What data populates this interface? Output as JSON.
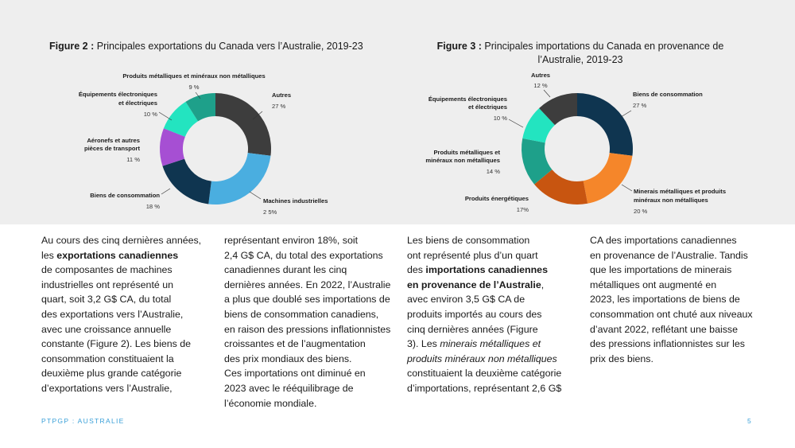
{
  "figures": [
    {
      "number_label": "Figure 2 :",
      "title_lines": [
        "Principales exportations du Canada vers l’Australie, 2019-23"
      ],
      "slices": [
        {
          "label_lines": [
            "Autres"
          ],
          "pct": "27 %",
          "value": 27,
          "color": "#3d3d3d"
        },
        {
          "label_lines": [
            "Machines industrielles"
          ],
          "pct": "2 5%",
          "value": 25,
          "color": "#4aaee0"
        },
        {
          "label_lines": [
            "Biens de consommation"
          ],
          "pct": "18 %",
          "value": 18,
          "color": "#0f3550"
        },
        {
          "label_lines": [
            "Aéronefs et autres",
            "pièces de transport"
          ],
          "pct": "11 %",
          "value": 11,
          "color": "#a64fd3"
        },
        {
          "label_lines": [
            "Équipements électroniques",
            "et électriques"
          ],
          "pct": "10 %",
          "value": 10,
          "color": "#23e4c0"
        },
        {
          "label_lines": [
            "Produits métalliques et minéraux non métalliques"
          ],
          "pct": "9 %",
          "value": 9,
          "color": "#1ea08a"
        }
      ]
    },
    {
      "number_label": "Figure 3 :",
      "title_lines": [
        "Principales importations du Canada en provenance de",
        "l’Australie, 2019-23"
      ],
      "slices": [
        {
          "label_lines": [
            "Biens de consommation"
          ],
          "pct": "27 %",
          "value": 27,
          "color": "#0f3550"
        },
        {
          "label_lines": [
            "Minerais métalliques et produits",
            "minéraux non métalliques"
          ],
          "pct": "20 %",
          "value": 20,
          "color": "#f5862a"
        },
        {
          "label_lines": [
            "Produits énergétiques"
          ],
          "pct": "17%",
          "value": 17,
          "color": "#c85510"
        },
        {
          "label_lines": [
            "Produits métalliques et",
            "minéraux non métalliques"
          ],
          "pct": "14 %",
          "value": 14,
          "color": "#1ea08a"
        },
        {
          "label_lines": [
            "Équipements électroniques",
            "et électriques"
          ],
          "pct": "10 %",
          "value": 10,
          "color": "#23e4c0"
        },
        {
          "label_lines": [
            "Autres"
          ],
          "pct": "12 %",
          "value": 12,
          "color": "#3d3d3d"
        }
      ]
    }
  ],
  "body_columns": [
    [
      {
        "parts": [
          {
            "t": "Au cours des cinq dernières années,"
          }
        ]
      },
      {
        "parts": [
          {
            "t": "les "
          },
          {
            "t": "exportations canadiennes",
            "b": true
          }
        ]
      },
      {
        "parts": [
          {
            "t": "de composantes de machines"
          }
        ]
      },
      {
        "parts": [
          {
            "t": "industrielles ont représenté un"
          }
        ]
      },
      {
        "parts": [
          {
            "t": "quart, soit 3,2 G$ CA, du total"
          }
        ]
      },
      {
        "parts": [
          {
            "t": "des exportations vers l’Australie,"
          }
        ]
      },
      {
        "parts": [
          {
            "t": "avec une croissance annuelle"
          }
        ]
      },
      {
        "parts": [
          {
            "t": "constante (Figure 2). Les biens de"
          }
        ]
      },
      {
        "parts": [
          {
            "t": "consommation constituaient la"
          }
        ]
      },
      {
        "parts": [
          {
            "t": "deuxième plus grande catégorie"
          }
        ]
      },
      {
        "parts": [
          {
            "t": "d’exportations vers l’Australie,"
          }
        ]
      }
    ],
    [
      {
        "parts": [
          {
            "t": "représentant environ 18%, soit"
          }
        ]
      },
      {
        "parts": [
          {
            "t": "2,4 G$ CA, du total des exportations"
          }
        ]
      },
      {
        "parts": [
          {
            "t": "canadiennes durant les cinq"
          }
        ]
      },
      {
        "parts": [
          {
            "t": "dernières années. En 2022, l’Australie"
          }
        ]
      },
      {
        "parts": [
          {
            "t": "a plus que doublé ses importations de"
          }
        ]
      },
      {
        "parts": [
          {
            "t": "biens de consommation canadiens,"
          }
        ]
      },
      {
        "parts": [
          {
            "t": "en raison des pressions inflationnistes"
          }
        ]
      },
      {
        "parts": [
          {
            "t": "croissantes et de l’augmentation"
          }
        ]
      },
      {
        "parts": [
          {
            "t": "des prix mondiaux des biens."
          }
        ]
      },
      {
        "parts": [
          {
            "t": "Ces importations ont diminué en"
          }
        ]
      },
      {
        "parts": [
          {
            "t": "2023 avec le rééquilibrage de"
          }
        ]
      },
      {
        "parts": [
          {
            "t": "l’économie mondiale."
          }
        ]
      }
    ],
    [
      {
        "parts": [
          {
            "t": "Les biens de consommation"
          }
        ]
      },
      {
        "parts": [
          {
            "t": "ont représenté plus d’un quart"
          }
        ]
      },
      {
        "parts": [
          {
            "t": "des "
          },
          {
            "t": "importations canadiennes",
            "b": true
          }
        ]
      },
      {
        "parts": [
          {
            "t": "en provenance de l’Australie",
            "b": true
          },
          {
            "t": ","
          }
        ]
      },
      {
        "parts": [
          {
            "t": "avec environ 3,5 G$ CA de"
          }
        ]
      },
      {
        "parts": [
          {
            "t": "produits importés au cours des"
          }
        ]
      },
      {
        "parts": [
          {
            "t": "cinq dernières années (Figure"
          }
        ]
      },
      {
        "parts": [
          {
            "t": "3). Les "
          },
          {
            "t": "minerais métalliques et",
            "i": true
          }
        ]
      },
      {
        "parts": [
          {
            "t": "produits minéraux non métalliques",
            "i": true
          }
        ]
      },
      {
        "parts": [
          {
            "t": "constituaient la deuxième catégorie"
          }
        ]
      },
      {
        "parts": [
          {
            "t": "d’importations, représentant 2,6 G$"
          }
        ]
      }
    ],
    [
      {
        "parts": [
          {
            "t": "CA des importations canadiennes"
          }
        ]
      },
      {
        "parts": [
          {
            "t": "en provenance de l’Australie. Tandis"
          }
        ]
      },
      {
        "parts": [
          {
            "t": "que les importations de minerais"
          }
        ]
      },
      {
        "parts": [
          {
            "t": "métalliques ont augmenté en"
          }
        ]
      },
      {
        "parts": [
          {
            "t": "2023, les importations de biens de"
          }
        ]
      },
      {
        "parts": [
          {
            "t": "consommation ont chuté aux niveaux"
          }
        ]
      },
      {
        "parts": [
          {
            "t": "d’avant 2022, reflétant une baisse"
          }
        ]
      },
      {
        "parts": [
          {
            "t": "des pressions inflationnistes sur les"
          }
        ]
      },
      {
        "parts": [
          {
            "t": "prix des biens."
          }
        ]
      }
    ]
  ],
  "footer": {
    "left": "PTPGP : AUSTRALIE",
    "page_number": "5"
  },
  "chart_data": [
    {
      "type": "pie",
      "title": "Figure 2 : Principales exportations du Canada vers l’Australie, 2019-23",
      "categories": [
        "Autres",
        "Machines industrielles",
        "Biens de consommation",
        "Aéronefs et autres pièces de transport",
        "Équipements électroniques et électriques",
        "Produits métalliques et minéraux non métalliques"
      ],
      "values": [
        27,
        25,
        18,
        11,
        10,
        9
      ],
      "unit": "%"
    },
    {
      "type": "pie",
      "title": "Figure 3 : Principales importations du Canada en provenance de l’Australie, 2019-23",
      "categories": [
        "Biens de consommation",
        "Minerais métalliques et produits minéraux non métalliques",
        "Produits énergétiques",
        "Produits métalliques et minéraux non métalliques",
        "Équipements électroniques et électriques",
        "Autres"
      ],
      "values": [
        27,
        20,
        17,
        14,
        10,
        12
      ],
      "unit": "%"
    }
  ]
}
